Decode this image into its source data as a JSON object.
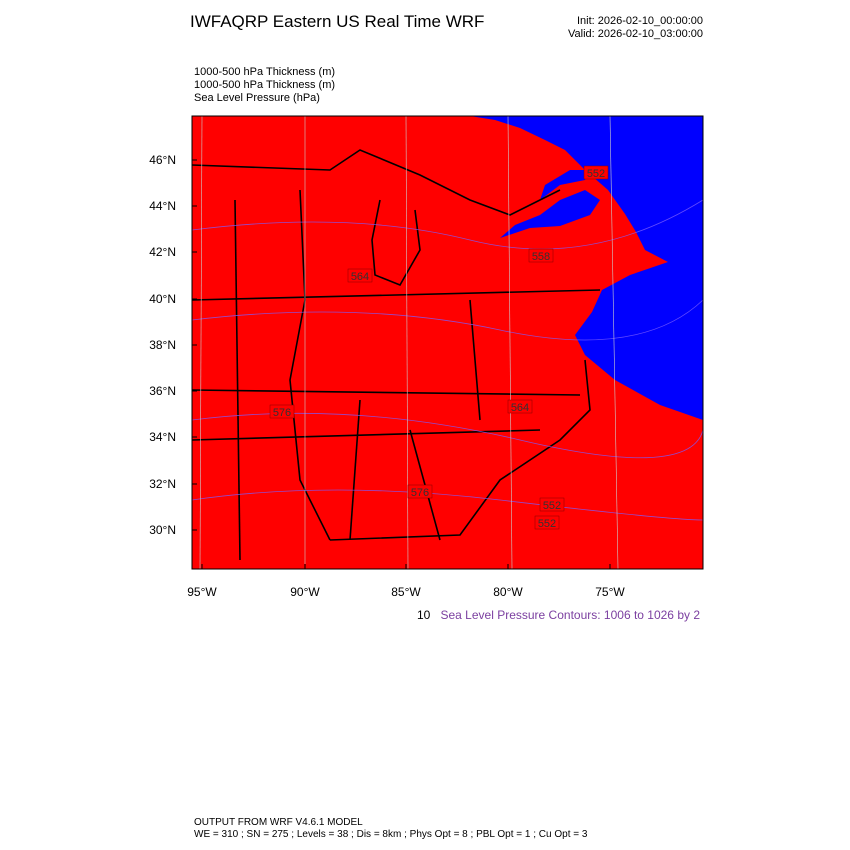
{
  "header": {
    "title": "IWFAQRP Eastern US Real Time WRF",
    "init": "Init: 2026-02-10_00:00:00",
    "valid": "Valid: 2026-02-10_03:00:00"
  },
  "fields": [
    "1000-500 hPa Thickness   (m)",
    "1000-500 hPa Thickness   (m)",
    "Sea Level Pressure   (hPa)"
  ],
  "map": {
    "lat_labels": [
      "46°N",
      "44°N",
      "42°N",
      "40°N",
      "38°N",
      "36°N",
      "34°N",
      "32°N",
      "30°N"
    ],
    "lon_labels": [
      "95°W",
      "90°W",
      "85°W",
      "80°W",
      "75°W"
    ],
    "contour_labels": [
      "552",
      "552",
      "552",
      "558",
      "564",
      "564",
      "576",
      "576"
    ]
  },
  "notes": {
    "thickness_fragment": "10",
    "slp_contours": "Sea Level Pressure Contours: 1006 to 1026 by 2"
  },
  "footer": {
    "model": "OUTPUT FROM WRF V4.6.1 MODEL",
    "config": "WE = 310 ; SN = 275 ; Levels = 38 ; Dis = 8km ; Phys Opt = 8 ; PBL Opt = 1 ; Cu Opt = 3"
  }
}
